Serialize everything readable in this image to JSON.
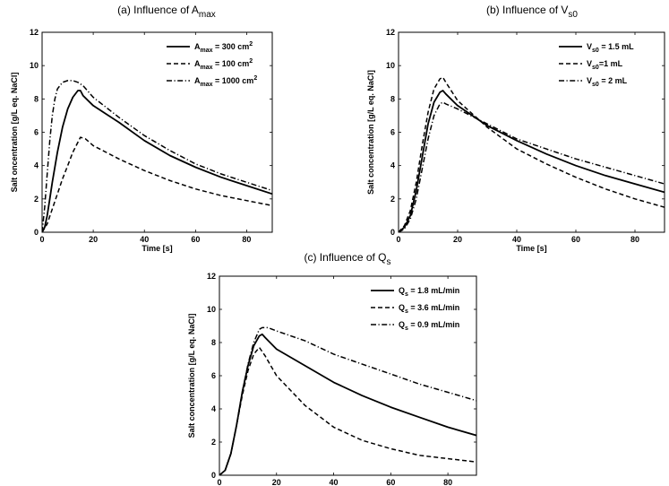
{
  "chart_data": [
    {
      "type": "line",
      "title": "(a) Influence of A",
      "title_sub": "max",
      "xlabel": "Time [s]",
      "ylabel": "Salt oncentration [g/L eq. NaCl]",
      "xlim": [
        0,
        90
      ],
      "ylim": [
        0,
        12
      ],
      "xticks": [
        0,
        20,
        40,
        60,
        80
      ],
      "yticks": [
        0,
        2,
        4,
        6,
        8,
        10,
        12
      ],
      "legend_position": "top-right",
      "series": [
        {
          "sym": "A",
          "sub": "max",
          "rest": " = 300 cm",
          "sup": "2",
          "dash": "solid",
          "x": [
            0,
            1,
            2,
            3,
            4,
            6,
            8,
            10,
            12,
            14,
            15,
            16,
            20,
            30,
            40,
            50,
            60,
            70,
            80,
            90
          ],
          "y": [
            0,
            0.3,
            1.0,
            2.0,
            3.0,
            4.8,
            6.3,
            7.4,
            8.1,
            8.5,
            8.5,
            8.2,
            7.6,
            6.6,
            5.5,
            4.6,
            3.9,
            3.3,
            2.8,
            2.3
          ]
        },
        {
          "sym": "A",
          "sub": "max",
          "rest": " = 100 cm",
          "sup": "2",
          "dash": "dashed",
          "x": [
            0,
            2,
            4,
            6,
            8,
            10,
            12,
            14,
            15,
            17,
            20,
            30,
            40,
            50,
            60,
            70,
            80,
            90
          ],
          "y": [
            0,
            0.5,
            1.4,
            2.3,
            3.2,
            4.0,
            4.8,
            5.4,
            5.7,
            5.6,
            5.2,
            4.4,
            3.7,
            3.1,
            2.6,
            2.2,
            1.9,
            1.6
          ]
        },
        {
          "sym": "A",
          "sub": "max",
          "rest": " = 1000 cm",
          "sup": "2",
          "dash": "dashdot",
          "x": [
            0,
            1,
            2,
            3,
            4,
            5,
            6,
            8,
            10,
            12,
            14,
            16,
            20,
            30,
            40,
            50,
            60,
            70,
            80,
            90
          ],
          "y": [
            0,
            1.5,
            3.5,
            5.5,
            7.0,
            8.0,
            8.6,
            9.0,
            9.1,
            9.1,
            9.0,
            8.8,
            8.1,
            6.9,
            5.8,
            4.9,
            4.1,
            3.5,
            3.0,
            2.5
          ]
        }
      ]
    },
    {
      "type": "line",
      "title": "(b) Influence of V",
      "title_sub": "s0",
      "xlabel": "Time [s]",
      "ylabel": "Salt concentration [g/L eq. NaCl]",
      "xlim": [
        0,
        90
      ],
      "ylim": [
        0,
        12
      ],
      "xticks": [
        0,
        20,
        40,
        60,
        80
      ],
      "yticks": [
        0,
        2,
        4,
        6,
        8,
        10,
        12
      ],
      "legend_position": "top-right",
      "series": [
        {
          "sym": "V",
          "sub": "s0",
          "rest": " = 1.5 mL",
          "sup": "",
          "dash": "solid",
          "x": [
            0,
            2,
            4,
            6,
            8,
            10,
            12,
            14,
            15,
            16,
            20,
            30,
            40,
            50,
            60,
            70,
            80,
            90
          ],
          "y": [
            0,
            0.3,
            1.0,
            2.5,
            4.5,
            6.5,
            7.8,
            8.4,
            8.5,
            8.3,
            7.6,
            6.4,
            5.5,
            4.7,
            4.0,
            3.4,
            2.9,
            2.4
          ]
        },
        {
          "sym": "V",
          "sub": "s0",
          "rest": "=1 mL",
          "sup": "",
          "dash": "dashed",
          "x": [
            0,
            2,
            4,
            6,
            8,
            10,
            12,
            14,
            15,
            16,
            20,
            30,
            40,
            50,
            60,
            70,
            80,
            90
          ],
          "y": [
            0,
            0.4,
            1.3,
            3.0,
            5.2,
            7.2,
            8.6,
            9.2,
            9.3,
            9.0,
            7.9,
            6.3,
            5.0,
            4.1,
            3.3,
            2.6,
            2.0,
            1.5
          ]
        },
        {
          "sym": "V",
          "sub": "s0",
          "rest": " = 2 mL",
          "sup": "",
          "dash": "dashdot",
          "x": [
            0,
            2,
            4,
            6,
            8,
            10,
            12,
            14,
            15,
            16,
            20,
            30,
            40,
            50,
            60,
            70,
            80,
            90
          ],
          "y": [
            0,
            0.2,
            0.8,
            2.0,
            3.8,
            5.6,
            7.0,
            7.7,
            7.8,
            7.7,
            7.4,
            6.5,
            5.6,
            5.0,
            4.4,
            3.9,
            3.4,
            2.9
          ]
        }
      ]
    },
    {
      "type": "line",
      "title": "(c) Influence of Q",
      "title_sub": "s",
      "xlabel": "Time [s]",
      "ylabel": "Salt concentration [g/L eq. NaCl]",
      "xlim": [
        0,
        90
      ],
      "ylim": [
        0,
        12
      ],
      "xticks": [
        0,
        20,
        40,
        60,
        80
      ],
      "yticks": [
        0,
        2,
        4,
        6,
        8,
        10,
        12
      ],
      "legend_position": "top-right",
      "series": [
        {
          "sym": "Q",
          "sub": "s",
          "rest": " = 1.8 mL/min",
          "sup": "",
          "dash": "solid",
          "x": [
            0,
            2,
            4,
            6,
            8,
            10,
            12,
            14,
            15,
            16,
            20,
            30,
            40,
            50,
            60,
            70,
            80,
            90
          ],
          "y": [
            0,
            0.3,
            1.3,
            3.0,
            5.0,
            6.6,
            7.8,
            8.4,
            8.5,
            8.3,
            7.6,
            6.6,
            5.6,
            4.8,
            4.1,
            3.5,
            2.9,
            2.4
          ]
        },
        {
          "sym": "Q",
          "sub": "s",
          "rest": " = 3.6 mL/min",
          "sup": "",
          "dash": "dashed",
          "x": [
            0,
            2,
            4,
            6,
            8,
            10,
            12,
            14,
            16,
            20,
            30,
            40,
            50,
            60,
            70,
            80,
            90
          ],
          "y": [
            0,
            0.3,
            1.3,
            3.0,
            4.8,
            6.3,
            7.3,
            7.7,
            7.2,
            6.0,
            4.2,
            2.9,
            2.1,
            1.6,
            1.2,
            1.0,
            0.8
          ]
        },
        {
          "sym": "Q",
          "sub": "s",
          "rest": " = 0.9 mL/min",
          "sup": "",
          "dash": "dashdot",
          "x": [
            0,
            2,
            4,
            6,
            8,
            10,
            12,
            14,
            15,
            17,
            20,
            30,
            40,
            50,
            60,
            70,
            80,
            90
          ],
          "y": [
            0,
            0.3,
            1.3,
            3.0,
            5.0,
            6.7,
            8.0,
            8.8,
            8.9,
            8.9,
            8.7,
            8.1,
            7.3,
            6.7,
            6.1,
            5.5,
            5.0,
            4.5
          ]
        }
      ]
    }
  ]
}
